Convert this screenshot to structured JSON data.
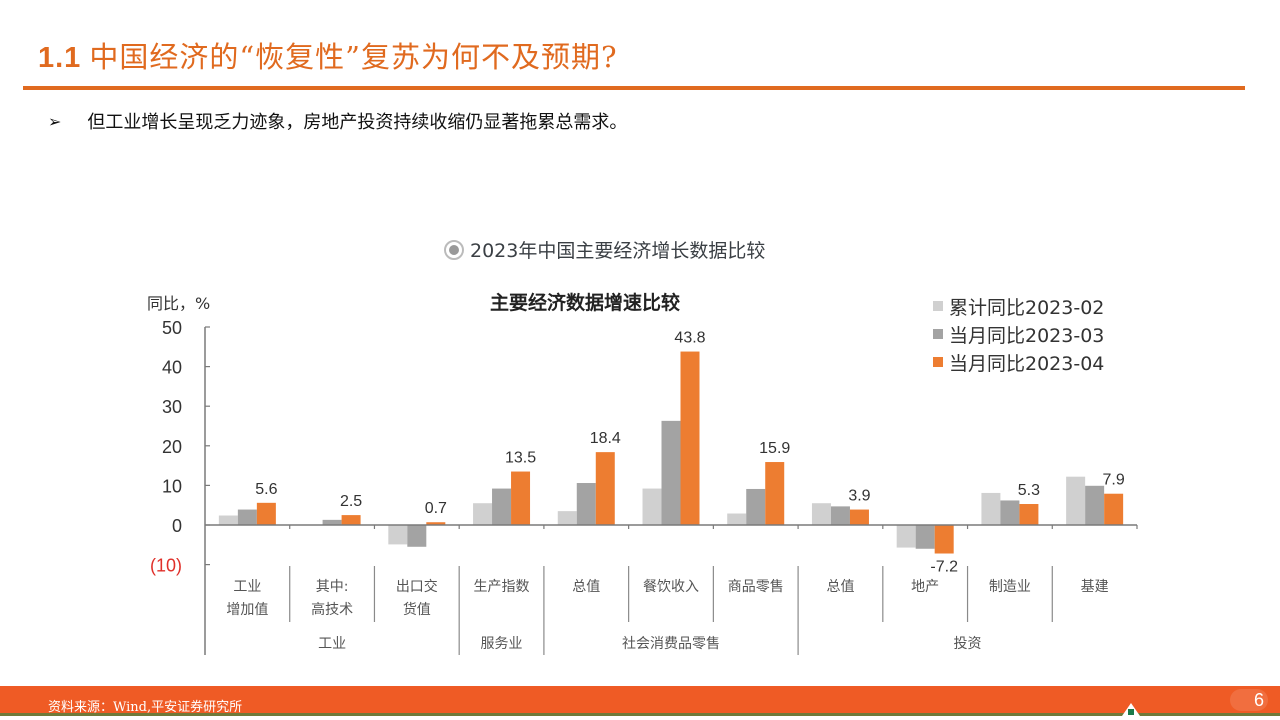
{
  "header": {
    "section_number": "1.1",
    "title": "中国经济的“恢复性”复苏为何不及预期?"
  },
  "bullet": {
    "marker": "➢",
    "text": "但工业增长呈现乏力迹象，房地产投资持续收缩仍显著拖累总需求。"
  },
  "figure": {
    "caption": "2023年中国主要经济增长数据比较"
  },
  "footer": {
    "source": "资料来源：Wind,平安证券研究所",
    "page_number": "6"
  },
  "colors": {
    "accent": "#e06a1f",
    "footer_bg": "#ef5b25",
    "series_light_gray": "#d0d0d0",
    "series_mid_gray": "#a3a3a3",
    "series_orange": "#ed7d31",
    "negative_tick": "#e0302a"
  },
  "chart_data": {
    "type": "bar",
    "title": "主要经济数据增速比较",
    "ylabel": "同比，%",
    "xlabel": "",
    "ylim": [
      -10,
      50
    ],
    "yticks": [
      50,
      40,
      30,
      20,
      10,
      0,
      -10
    ],
    "ytick_labels": [
      "50",
      "40",
      "30",
      "20",
      "10",
      "0",
      "(10)"
    ],
    "grid": false,
    "legend_position": "top-right",
    "categories": [
      "工业增加值",
      "其中:高技术",
      "出口交货值",
      "生产指数",
      "总值",
      "餐饮收入",
      "商品零售",
      "总值",
      "地产",
      "制造业",
      "基建"
    ],
    "category_lines": [
      [
        "工业",
        "增加值"
      ],
      [
        "其中:",
        "高技术"
      ],
      [
        "出口交",
        "货值"
      ],
      [
        "生产指数"
      ],
      [
        "总值"
      ],
      [
        "餐饮收入"
      ],
      [
        "商品零售"
      ],
      [
        "总值"
      ],
      [
        "地产"
      ],
      [
        "制造业"
      ],
      [
        "基建"
      ]
    ],
    "groups": [
      {
        "label": "工业",
        "span": [
          0,
          2
        ]
      },
      {
        "label": "服务业",
        "span": [
          3,
          3
        ]
      },
      {
        "label": "社会消费品零售",
        "span": [
          4,
          6
        ]
      },
      {
        "label": "投资",
        "span": [
          7,
          10
        ]
      }
    ],
    "series": [
      {
        "name": "累计同比2023-02",
        "color": "#d0d0d0",
        "values": [
          2.4,
          0.1,
          -4.9,
          5.5,
          3.5,
          9.2,
          2.9,
          5.5,
          -5.7,
          8.1,
          12.2
        ]
      },
      {
        "name": "当月同比2023-03",
        "color": "#a3a3a3",
        "values": [
          3.9,
          1.3,
          -5.5,
          9.2,
          10.6,
          26.3,
          9.1,
          4.7,
          -6.0,
          6.2,
          9.9
        ]
      },
      {
        "name": "当月同比2023-04",
        "color": "#ed7d31",
        "values": [
          5.6,
          2.5,
          0.7,
          13.5,
          18.4,
          43.8,
          15.9,
          3.9,
          -7.2,
          5.3,
          7.9
        ]
      }
    ],
    "data_labels": {
      "series_index": 2,
      "labels": [
        "5.6",
        "2.5",
        "0.7",
        "13.5",
        "18.4",
        "43.8",
        "15.9",
        "3.9",
        "-7.2",
        "5.3",
        "7.9"
      ]
    }
  }
}
